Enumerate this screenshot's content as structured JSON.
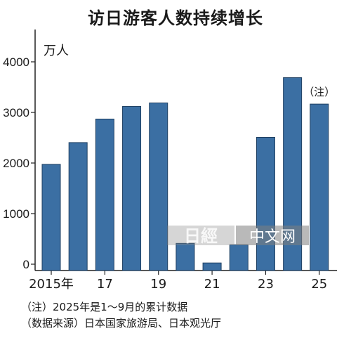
{
  "title": "访日游客人数持续增长",
  "chart_data": {
    "type": "bar",
    "title": "访日游客人数持续增长",
    "unit_label": "万人",
    "x_tick_labels": [
      "2015年",
      "17",
      "19",
      "21",
      "23",
      "25"
    ],
    "categories": [
      "2015",
      "2016",
      "2017",
      "2018",
      "2019",
      "2020",
      "2021",
      "2022",
      "2023",
      "2024",
      "2025"
    ],
    "values": [
      1974,
      2404,
      2869,
      3119,
      3188,
      412,
      25,
      383,
      2507,
      3687,
      3165
    ],
    "y_ticks": [
      0,
      1000,
      2000,
      3000,
      4000
    ],
    "y_tick_labels": [
      "0",
      "1000",
      "2000",
      "3000",
      "4000"
    ],
    "ylim": [
      0,
      4400
    ],
    "bar_annotation": {
      "category": "2025",
      "text": "（注）"
    },
    "grid": false,
    "legend": "none",
    "bar_color": "#3b6fa3"
  },
  "notes": [
    "（注）2025年是1～9月的累计数据",
    "（数据来源）日本国家旅游局、日本观光厅"
  ],
  "watermark": {
    "mark": "日經",
    "text": "中文网"
  }
}
